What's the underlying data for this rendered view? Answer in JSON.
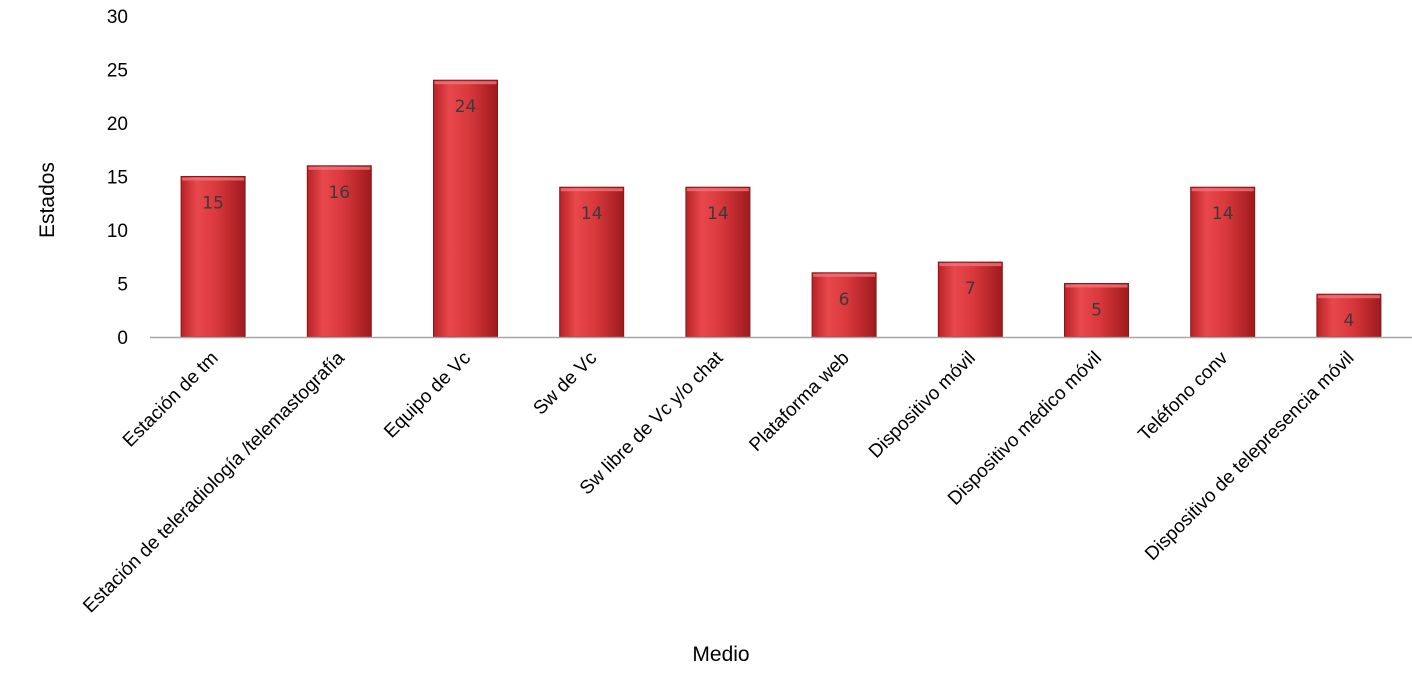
{
  "chart_data": {
    "type": "bar",
    "title": "",
    "xlabel": "Medio",
    "ylabel": "Estados",
    "ylim": [
      0,
      30
    ],
    "yticks": [
      0,
      5,
      10,
      15,
      20,
      25,
      30
    ],
    "grid": false,
    "legend": "none",
    "categories": [
      "Estación de tm",
      "Estación de teleradiología /telemastografía",
      "Equipo de Vc",
      "Sw de Vc",
      "Sw libre de Vc y/o chat",
      "Plataforma web",
      "Dispositivo móvil",
      "Dispositivo médico móvil",
      "Teléfono conv",
      "Dispositivo de telepresencia móvil"
    ],
    "values": [
      15,
      16,
      24,
      14,
      14,
      6,
      7,
      5,
      14,
      4
    ],
    "colors": {
      "bar_light": "#e8484c",
      "bar_dark": "#9e1a1d",
      "bar_outline": "#8a1518",
      "axis": "#a6a6a6"
    }
  }
}
